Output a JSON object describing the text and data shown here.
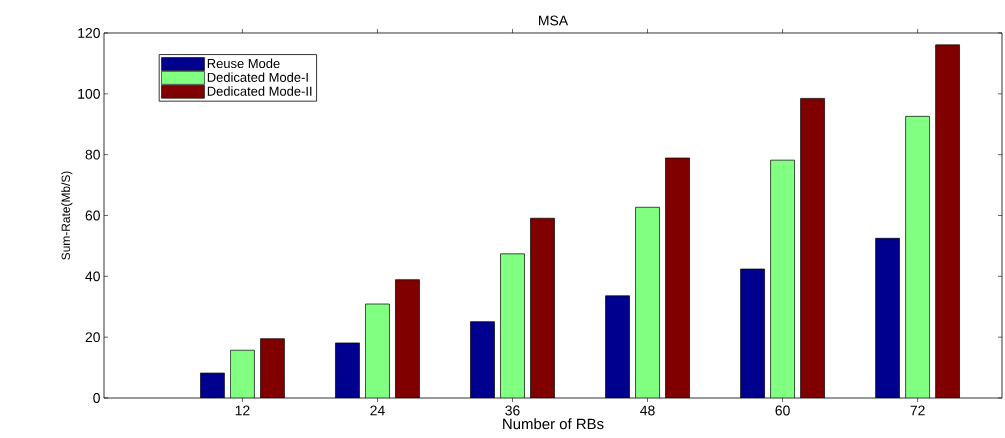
{
  "chart_data": {
    "type": "bar",
    "title": "MSA",
    "xlabel": "Number of RBs",
    "ylabel": "Sum-Rate(Mb/S)",
    "x": [
      12,
      24,
      36,
      48,
      60,
      72
    ],
    "xlim": [
      -0.3,
      79.5
    ],
    "xticks": [
      12,
      24,
      36,
      48,
      60,
      72
    ],
    "ylim": [
      0,
      120
    ],
    "yticks": [
      0,
      20,
      40,
      60,
      80,
      100,
      120
    ],
    "legend": "top left",
    "grid": false,
    "series": [
      {
        "name": "Reuse Mode",
        "color": "#00008f",
        "values": [
          8.2,
          18.1,
          25.1,
          33.6,
          42.4,
          52.5
        ]
      },
      {
        "name": "Dedicated Mode-I",
        "color": "#80ff80",
        "values": [
          15.7,
          30.9,
          47.4,
          62.7,
          78.2,
          92.6
        ]
      },
      {
        "name": "Dedicated Mode-II",
        "color": "#800000",
        "values": [
          19.5,
          38.9,
          59.1,
          78.9,
          98.5,
          116.1
        ]
      }
    ]
  }
}
